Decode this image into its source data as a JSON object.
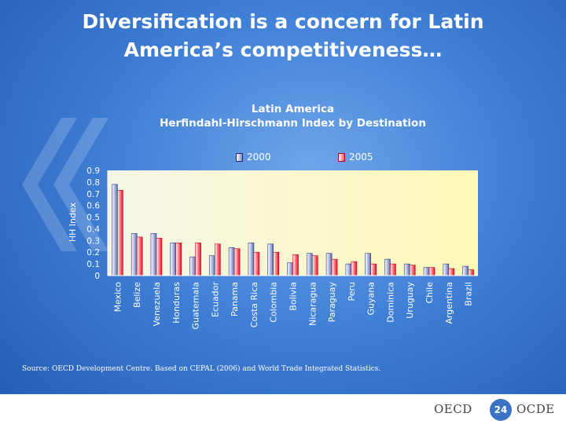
{
  "slide": {
    "title_line1": "Diversification is a concern for Latin",
    "title_line2": "America’s competitiveness…",
    "source": "Source: OECD Development Centre. Based on CEPAL (2006) and World Trade Integrated Statistics.",
    "footer": {
      "left_logo": "OECD",
      "right_logo": "OCDE",
      "page_number": "24"
    }
  },
  "colors": {
    "background": "#3f7fd6",
    "plot_area": "#fdf9c4",
    "series_2000": "#8090c8",
    "series_2005": "#ff5060"
  },
  "chart_data": {
    "type": "bar",
    "title_line1": "Latin America",
    "title_line2": "Herfindahl-Hirschmann Index by Destination",
    "xlabel": "",
    "ylabel": "HH Index",
    "ylim": [
      0,
      0.9
    ],
    "yticks": [
      "0",
      "0.1",
      "0.2",
      "0.3",
      "0.4",
      "0.5",
      "0.6",
      "0.7",
      "0.8",
      "0.9"
    ],
    "legend_position": "top",
    "grid": false,
    "categories": [
      "Mexico",
      "Belize",
      "Venezuela",
      "Honduras",
      "Guatemala",
      "Ecuador",
      "Panama",
      "Costa Rica",
      "Colombia",
      "Bolivia",
      "Nicaragua",
      "Paraguay",
      "Peru",
      "Guyana",
      "Dominica",
      "Uruguay",
      "Chile",
      "Argentina",
      "Brazil"
    ],
    "series": [
      {
        "name": "2000",
        "values": [
          0.78,
          0.36,
          0.36,
          0.28,
          0.16,
          0.17,
          0.24,
          0.28,
          0.27,
          0.11,
          0.19,
          0.19,
          0.1,
          0.19,
          0.14,
          0.1,
          0.07,
          0.1,
          0.08
        ]
      },
      {
        "name": "2005",
        "values": [
          0.73,
          0.33,
          0.32,
          0.28,
          0.28,
          0.27,
          0.23,
          0.2,
          0.2,
          0.18,
          0.17,
          0.14,
          0.12,
          0.1,
          0.1,
          0.09,
          0.07,
          0.06,
          0.05
        ]
      }
    ]
  }
}
